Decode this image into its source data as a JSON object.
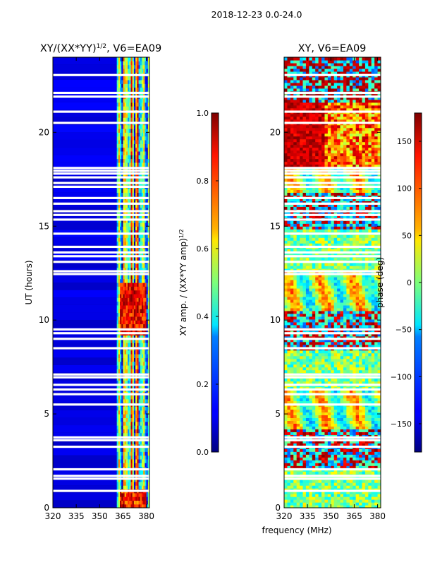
{
  "suptitle": "2018-12-23 0.0-24.0",
  "xlabel": "frequency (MHz)",
  "chart_data": [
    {
      "type": "heatmap",
      "title_main": "XY/(XX*YY)",
      "title_exp": "1/2",
      "title_suffix": ", V6=EA09",
      "ylabel": "UT (hours)",
      "xlim": [
        320,
        382
      ],
      "ylim": [
        0,
        24
      ],
      "xticks": [
        "320",
        "335",
        "350",
        "365",
        "380"
      ],
      "xtick_values": [
        320,
        335,
        350,
        365,
        380
      ],
      "yticks": [
        "0",
        "5",
        "10",
        "15",
        "20"
      ],
      "ytick_values": [
        0,
        5,
        10,
        15,
        20
      ],
      "colorbar": {
        "label_main": "XY amp. / (XX*YY amp)",
        "label_exp": "1/2",
        "ticks": [
          "0.0",
          "0.2",
          "0.4",
          "0.6",
          "0.8",
          "1.0"
        ],
        "tick_values": [
          0.0,
          0.2,
          0.4,
          0.6,
          0.8,
          1.0
        ],
        "range": [
          0.0,
          1.0
        ],
        "colormap": "jet"
      }
    },
    {
      "type": "heatmap",
      "title": "XY, V6=EA09",
      "xlim": [
        320,
        382
      ],
      "ylim": [
        0,
        24
      ],
      "xticks": [
        "320",
        "335",
        "350",
        "365",
        "380"
      ],
      "xtick_values": [
        320,
        335,
        350,
        365,
        380
      ],
      "yticks": [
        "0",
        "5",
        "10",
        "15",
        "20"
      ],
      "ytick_values": [
        0,
        5,
        10,
        15,
        20
      ],
      "colorbar": {
        "label": "phase (deg)",
        "ticks": [
          "−150",
          "−100",
          "−50",
          "0",
          "50",
          "100",
          "150"
        ],
        "tick_values": [
          -150,
          -100,
          -50,
          0,
          50,
          100,
          150
        ],
        "range": [
          -180,
          180
        ],
        "colormap": "jet"
      }
    }
  ],
  "flagged_hours": [
    0.9,
    1.55,
    1.7,
    2.05,
    3.25,
    3.6,
    3.75,
    5.5,
    6.05,
    6.3,
    6.55,
    6.95,
    7.1,
    8.5,
    9.0,
    9.3,
    9.5,
    12.45,
    12.6,
    13.1,
    13.4,
    13.6,
    13.9,
    14.6,
    15.35,
    15.6,
    15.8,
    16.2,
    16.5,
    17.1,
    17.3,
    17.6,
    17.8,
    17.95,
    18.1,
    20.5,
    21.1,
    21.9,
    22.1,
    23.05
  ]
}
